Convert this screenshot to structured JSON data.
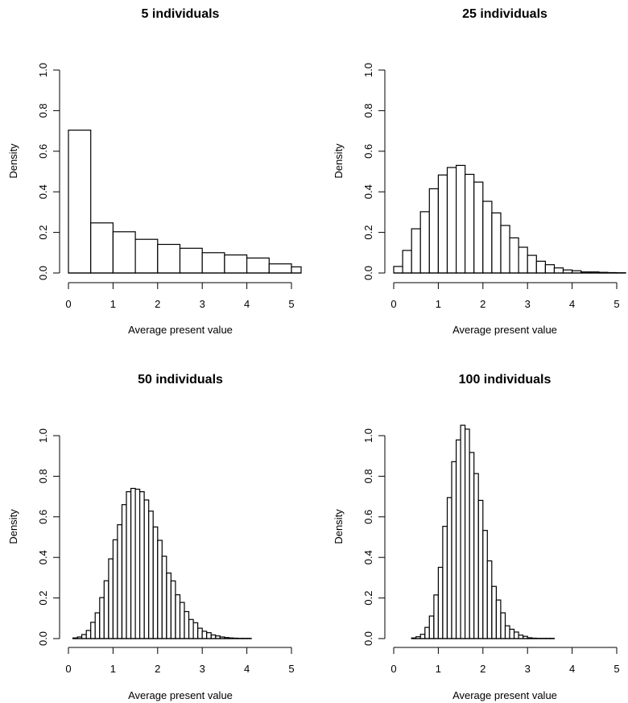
{
  "chart_data": [
    {
      "type": "bar",
      "subtype": "histogram",
      "title": "5 individuals",
      "xlabel": "Average present value",
      "ylabel": "Density",
      "xlim": [
        0,
        5.2
      ],
      "ylim": [
        0,
        1.0
      ],
      "x_ticks": [
        "0",
        "1",
        "2",
        "3",
        "4",
        "5"
      ],
      "y_ticks": [
        "0.0",
        "0.2",
        "0.4",
        "0.6",
        "0.8",
        "1.0"
      ],
      "bin_width": 0.5,
      "bin_start": 0,
      "values": [
        0.704,
        0.247,
        0.203,
        0.166,
        0.141,
        0.122,
        0.1,
        0.089,
        0.074,
        0.045,
        0.03
      ],
      "grid": false
    },
    {
      "type": "bar",
      "subtype": "histogram",
      "title": "25 individuals",
      "xlabel": "Average present value",
      "ylabel": "Density",
      "xlim": [
        0,
        5.2
      ],
      "ylim": [
        0,
        1.0
      ],
      "x_ticks": [
        "0",
        "1",
        "2",
        "3",
        "4",
        "5"
      ],
      "y_ticks": [
        "0.0",
        "0.2",
        "0.4",
        "0.6",
        "0.8",
        "1.0"
      ],
      "bin_width": 0.2,
      "bin_start": 0,
      "values": [
        0.032,
        0.111,
        0.218,
        0.302,
        0.415,
        0.483,
        0.52,
        0.53,
        0.486,
        0.448,
        0.353,
        0.296,
        0.234,
        0.173,
        0.127,
        0.087,
        0.058,
        0.041,
        0.025,
        0.015,
        0.011,
        0.005,
        0.005,
        0.003,
        0.002,
        0.001
      ],
      "grid": false
    },
    {
      "type": "bar",
      "subtype": "histogram",
      "title": "50 individuals",
      "xlabel": "Average present value",
      "ylabel": "Density",
      "xlim": [
        0,
        5
      ],
      "ylim": [
        0,
        1.0
      ],
      "x_ticks": [
        "0",
        "1",
        "2",
        "3",
        "4",
        "5"
      ],
      "y_ticks": [
        "0.0",
        "0.2",
        "0.4",
        "0.6",
        "0.8",
        "1.0"
      ],
      "bin_width": 0.1,
      "bin_start": 0.1,
      "values": [
        0.003,
        0.008,
        0.02,
        0.04,
        0.08,
        0.127,
        0.202,
        0.285,
        0.393,
        0.487,
        0.561,
        0.66,
        0.724,
        0.74,
        0.736,
        0.724,
        0.683,
        0.628,
        0.55,
        0.484,
        0.406,
        0.323,
        0.284,
        0.216,
        0.178,
        0.133,
        0.094,
        0.078,
        0.051,
        0.036,
        0.029,
        0.018,
        0.013,
        0.008,
        0.005,
        0.003,
        0.002,
        0.001,
        0.001,
        0.001
      ],
      "grid": false
    },
    {
      "type": "bar",
      "subtype": "histogram",
      "title": "100 individuals",
      "xlabel": "Average present value",
      "ylabel": "Density",
      "xlim": [
        0,
        5
      ],
      "ylim": [
        0,
        1.0
      ],
      "x_ticks": [
        "0",
        "1",
        "2",
        "3",
        "4",
        "5"
      ],
      "y_ticks": [
        "0.0",
        "0.2",
        "0.4",
        "0.6",
        "0.8",
        "1.0"
      ],
      "bin_width": 0.1,
      "bin_start": 0.4,
      "values": [
        0.003,
        0.009,
        0.021,
        0.055,
        0.111,
        0.215,
        0.351,
        0.553,
        0.695,
        0.872,
        0.979,
        1.051,
        1.032,
        0.917,
        0.813,
        0.681,
        0.533,
        0.383,
        0.257,
        0.19,
        0.127,
        0.063,
        0.046,
        0.032,
        0.017,
        0.011,
        0.004,
        0.002,
        0.001,
        0.001,
        0.001,
        0.001
      ],
      "grid": false
    }
  ]
}
